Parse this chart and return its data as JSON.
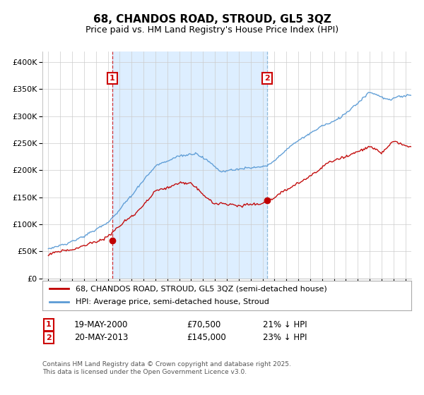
{
  "title": "68, CHANDOS ROAD, STROUD, GL5 3QZ",
  "subtitle": "Price paid vs. HM Land Registry's House Price Index (HPI)",
  "legend_line1": "68, CHANDOS ROAD, STROUD, GL5 3QZ (semi-detached house)",
  "legend_line2": "HPI: Average price, semi-detached house, Stroud",
  "annotation1_label": "1",
  "annotation1_date": "19-MAY-2000",
  "annotation1_price": 70500,
  "annotation1_hpi": "21% ↓ HPI",
  "annotation2_label": "2",
  "annotation2_date": "20-MAY-2013",
  "annotation2_price": 145000,
  "annotation2_hpi": "23% ↓ HPI",
  "footer": "Contains HM Land Registry data © Crown copyright and database right 2025.\nThis data is licensed under the Open Government Licence v3.0.",
  "hpi_color": "#5b9bd5",
  "price_color": "#c00000",
  "annotation1_vline_color": "#cc0000",
  "annotation2_vline_color": "#7aaccf",
  "shade_color": "#ddeeff",
  "annotation_box_color": "#cc0000",
  "ylim_min": 0,
  "ylim_max": 420000,
  "yticks": [
    0,
    50000,
    100000,
    150000,
    200000,
    250000,
    300000,
    350000,
    400000
  ],
  "ytick_labels": [
    "£0",
    "£50K",
    "£100K",
    "£150K",
    "£200K",
    "£250K",
    "£300K",
    "£350K",
    "£400K"
  ],
  "sale1_year_approx": 2000.38,
  "sale2_year_approx": 2013.38,
  "sale1_price": 70500,
  "sale2_price": 145000,
  "xstart": 1995,
  "xend": 2025
}
